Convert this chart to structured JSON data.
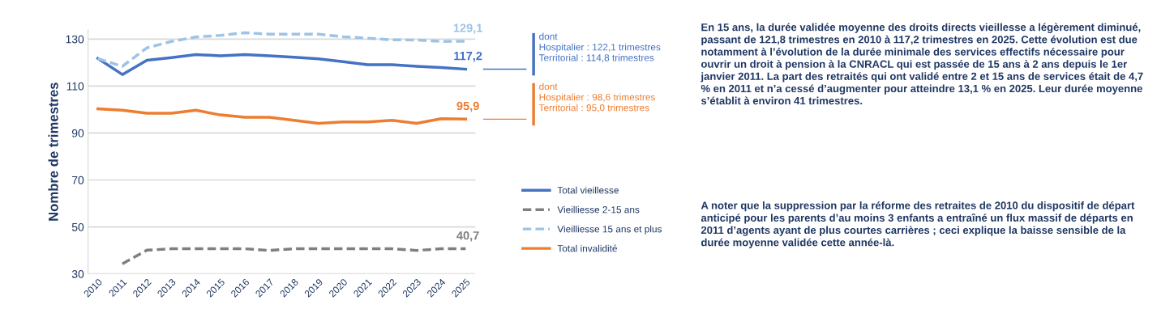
{
  "chart_data": {
    "type": "line",
    "ylabel": "Nombre de trimestres",
    "categories": [
      "2010",
      "2011",
      "2012",
      "2013",
      "2014",
      "2015",
      "2016",
      "2017",
      "2018",
      "2019",
      "2020",
      "2021",
      "2022",
      "2023",
      "2024",
      "2025"
    ],
    "series": [
      {
        "name": "Total vieillesse",
        "color": "#4472c4",
        "line_style": "solid",
        "values": [
          121.8,
          114.9,
          121,
          122.1,
          123.4,
          122.9,
          123.4,
          122.9,
          122.3,
          121.6,
          120.4,
          119.1,
          119.1,
          118.4,
          117.9,
          117.2
        ]
      },
      {
        "name": "Vieilliesse 2-15 ans",
        "color": "#7f7f7f",
        "line_style": "dashed",
        "values": [
          null,
          34.3,
          40.1,
          40.7,
          40.7,
          40.7,
          40.7,
          40,
          40.7,
          40.7,
          40.7,
          40.7,
          40.7,
          40,
          40.7,
          40.7
        ]
      },
      {
        "name": "Vieilliesse 15 ans et plus",
        "color": "#9dc3e6",
        "line_style": "dashed",
        "values": [
          121.7,
          118.4,
          126.3,
          129,
          130.9,
          131.6,
          132.7,
          132.1,
          132.1,
          132.1,
          131,
          130.4,
          129.7,
          129.6,
          129,
          129.1
        ]
      },
      {
        "name": "Total invalidité",
        "color": "#ed7d31",
        "line_style": "solid",
        "values": [
          100.3,
          99.7,
          98.4,
          98.4,
          99.7,
          97.7,
          96.7,
          96.7,
          95.4,
          94.1,
          94.7,
          94.7,
          95.4,
          94.1,
          96.1,
          95.9
        ]
      }
    ],
    "ylim": [
      30,
      134
    ],
    "yticks": [
      30,
      50,
      70,
      90,
      110,
      130
    ],
    "grid": "y",
    "legend": "right",
    "marker": "none",
    "annotations": [
      {
        "text": "129,1",
        "x": "2025",
        "y": 129.1
      },
      {
        "text": "117,2",
        "x": "2025",
        "y": 117.2
      },
      {
        "text": "95,9",
        "x": "2025",
        "y": 95.9
      },
      {
        "text": "40,7",
        "x": "2025",
        "y": 40.7
      },
      "dont\nHospitalier : 122,1 trimestres\nTerritorial : 114,8 trimestres",
      "dont\nHospitalier : 98,6 trimestres\nTerritorial : 95,0 trimestres",
      "En 15 ans, la durée validée moyenne des droits directs vieillesse a légèrement diminué, passant de 121,8 trimestres en 2010 à 117,2 trimestres en 2025. Cette évolution est due notamment à l’évolution de la durée minimale des services effectifs nécessaire pour ouvrir un droit à pension à la CNRACL qui est passée de 15 ans à 2 ans depuis le 1er janvier 2011. La part des retraités qui ont validé entre 2 et 15 ans de services était de 4,7 % en 2011 et n’a cessé d’augmenter pour atteindre 13,1 % en 2025. Leur durée moyenne s’établit à environ 41 trimestres.",
      "A noter que la suppression par la réforme des retraites de 2010 du dispositif de départ anticipé pour les parents d’au moins 3 enfants a entraîné un flux massif de départs en 2011 d’agents ayant de plus courtes carrières ; ceci explique la baisse sensible de la durée moyenne validée cette année-là."
    ]
  }
}
